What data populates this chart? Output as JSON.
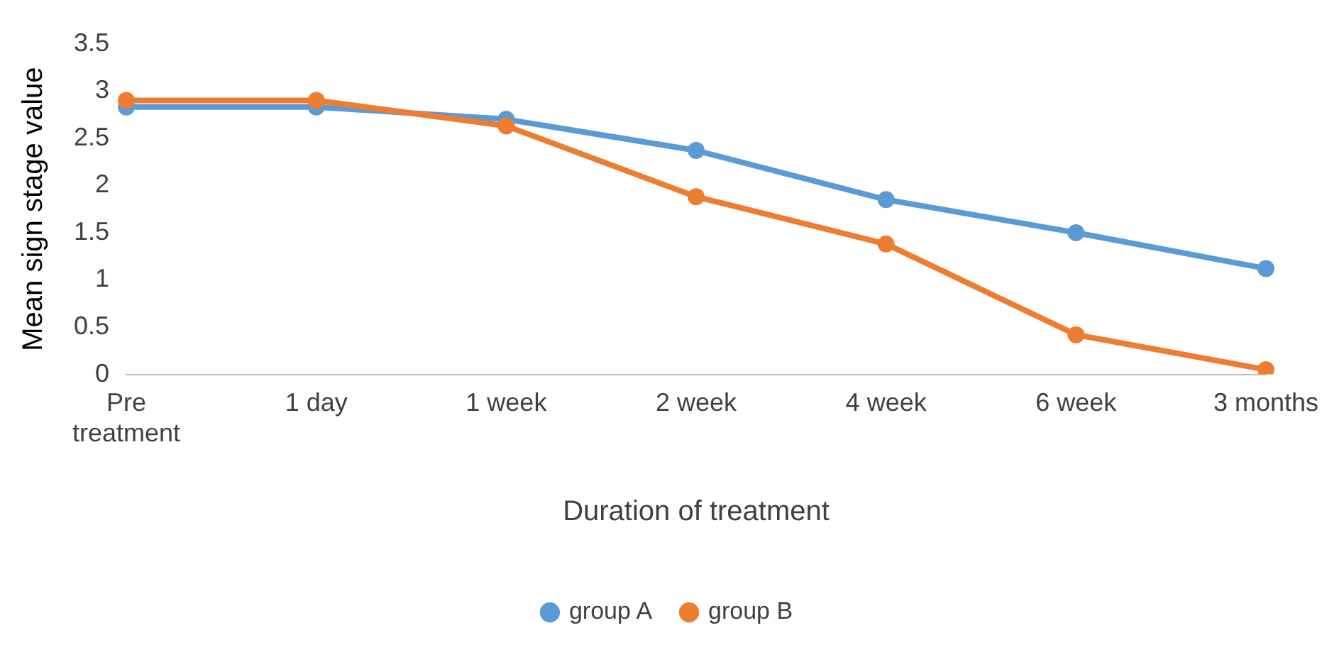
{
  "chart_data": {
    "type": "line",
    "xlabel": "Duration of treatment",
    "ylabel": "Mean sign stage value",
    "categories": [
      "Pre treatment",
      "1 day",
      "1 week",
      "2 week",
      "4 week",
      "6 week",
      "3 months"
    ],
    "series": [
      {
        "name": "group A",
        "color": "#5b9bd5",
        "values": [
          2.83,
          2.83,
          2.7,
          2.37,
          1.85,
          1.5,
          1.12
        ]
      },
      {
        "name": "group B",
        "color": "#ed7d31",
        "values": [
          2.9,
          2.9,
          2.63,
          1.88,
          1.38,
          0.42,
          0.05
        ]
      }
    ],
    "ylim": [
      0,
      3.5
    ],
    "yticks": [
      0,
      0.5,
      1,
      1.5,
      2,
      2.5,
      3,
      3.5
    ],
    "grid": false,
    "legend": "bottom",
    "marker": "circle",
    "line_style": "solid"
  }
}
